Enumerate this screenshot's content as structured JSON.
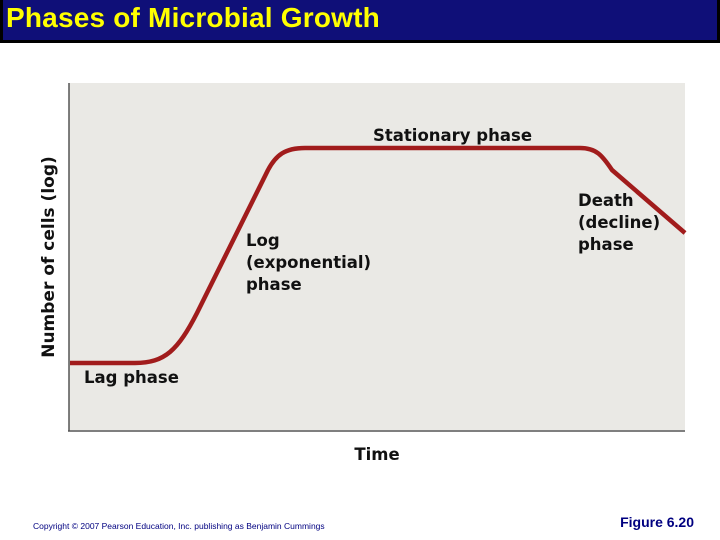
{
  "slide": {
    "title": "Phases of Microbial Growth",
    "copyright": "Copyright © 2007 Pearson Education, Inc. publishing as Benjamin Cummings",
    "figure_label": "Figure 6.20"
  },
  "diagram": {
    "y_axis_label": "Number of cells (log)",
    "x_axis_label": "Time",
    "phases": {
      "lag": "Lag phase",
      "log": [
        "Log",
        "(exponential)",
        "phase"
      ],
      "stationary": "Stationary phase",
      "death": [
        "Death",
        "(decline)",
        "phase"
      ]
    }
  },
  "colors": {
    "title_bar": "#0f0f78",
    "title_text": "#ffff00",
    "plot_background": "#eae9e5",
    "curve": "#a11c1c",
    "footer_text": "#000080"
  }
}
